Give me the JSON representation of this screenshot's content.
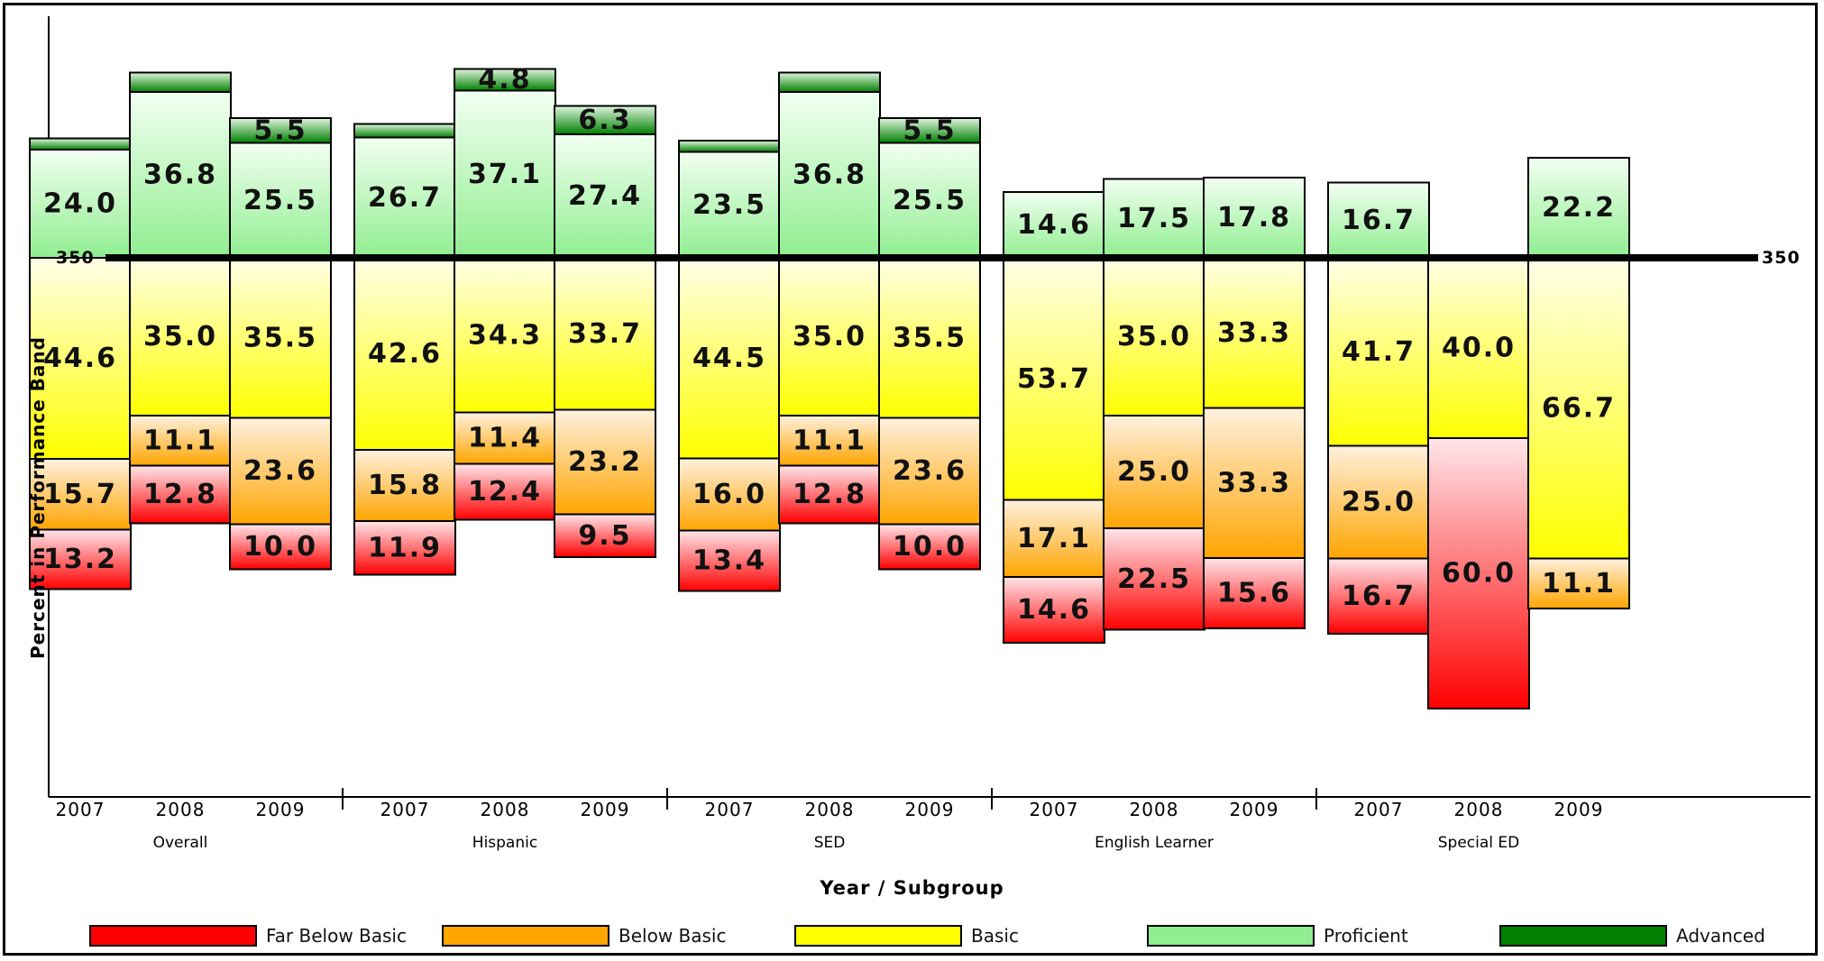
{
  "chart_data": {
    "type": "bar",
    "subtype": "diverging-stacked",
    "ylabel": "Percent in Performance Band",
    "xlabel": "Year / Subgroup",
    "reference_line": {
      "label": "350"
    },
    "groups": [
      "Overall",
      "Hispanic",
      "SED",
      "English Learner",
      "Special ED"
    ],
    "years": [
      "2007",
      "2008",
      "2009"
    ],
    "band_order_bottom_to_top": [
      "Far Below Basic",
      "Below Basic",
      "Basic",
      "Proficient",
      "Advanced"
    ],
    "legend": [
      {
        "name": "Far Below Basic",
        "color": "#ff0000"
      },
      {
        "name": "Below Basic",
        "color": "#ffa500"
      },
      {
        "name": "Basic",
        "color": "#ffff00"
      },
      {
        "name": "Proficient",
        "color": "#90ee90"
      },
      {
        "name": "Advanced",
        "color": "#008000"
      }
    ],
    "bars": [
      {
        "group": "Overall",
        "year": "2007",
        "values": {
          "Far Below Basic": 13.2,
          "Below Basic": 15.7,
          "Basic": 44.6,
          "Proficient": 24.0,
          "Advanced": 2.5
        },
        "labels": {
          "Far Below Basic": "13.2",
          "Below Basic": "15.7",
          "Basic": "44.6",
          "Proficient": "24.0"
        }
      },
      {
        "group": "Overall",
        "year": "2008",
        "values": {
          "Far Below Basic": 12.8,
          "Below Basic": 11.1,
          "Basic": 35.0,
          "Proficient": 36.8,
          "Advanced": 4.3
        },
        "labels": {
          "Far Below Basic": "12.8",
          "Below Basic": "11.1",
          "Basic": "35.0",
          "Proficient": "36.8"
        }
      },
      {
        "group": "Overall",
        "year": "2009",
        "values": {
          "Far Below Basic": 10.0,
          "Below Basic": 23.6,
          "Basic": 35.5,
          "Proficient": 25.5,
          "Advanced": 5.5
        },
        "labels": {
          "Far Below Basic": "10.0",
          "Below Basic": "23.6",
          "Basic": "35.5",
          "Proficient": "25.5",
          "Advanced": "5.5"
        }
      },
      {
        "group": "Hispanic",
        "year": "2007",
        "values": {
          "Far Below Basic": 11.9,
          "Below Basic": 15.8,
          "Basic": 42.6,
          "Proficient": 26.7,
          "Advanced": 3.0
        },
        "labels": {
          "Far Below Basic": "11.9",
          "Below Basic": "15.8",
          "Basic": "42.6",
          "Proficient": "26.7"
        }
      },
      {
        "group": "Hispanic",
        "year": "2008",
        "values": {
          "Far Below Basic": 12.4,
          "Below Basic": 11.4,
          "Basic": 34.3,
          "Proficient": 37.1,
          "Advanced": 4.8
        },
        "labels": {
          "Far Below Basic": "12.4",
          "Below Basic": "11.4",
          "Basic": "34.3",
          "Proficient": "37.1",
          "Advanced": "4.8"
        }
      },
      {
        "group": "Hispanic",
        "year": "2009",
        "values": {
          "Far Below Basic": 9.5,
          "Below Basic": 23.2,
          "Basic": 33.7,
          "Proficient": 27.4,
          "Advanced": 6.3
        },
        "labels": {
          "Far Below Basic": "9.5",
          "Below Basic": "23.2",
          "Basic": "33.7",
          "Proficient": "27.4",
          "Advanced": "6.3"
        }
      },
      {
        "group": "SED",
        "year": "2007",
        "values": {
          "Far Below Basic": 13.4,
          "Below Basic": 16.0,
          "Basic": 44.5,
          "Proficient": 23.5,
          "Advanced": 2.5
        },
        "labels": {
          "Far Below Basic": "13.4",
          "Below Basic": "16.0",
          "Basic": "44.5",
          "Proficient": "23.5"
        }
      },
      {
        "group": "SED",
        "year": "2008",
        "values": {
          "Far Below Basic": 12.8,
          "Below Basic": 11.1,
          "Basic": 35.0,
          "Proficient": 36.8,
          "Advanced": 4.3
        },
        "labels": {
          "Far Below Basic": "12.8",
          "Below Basic": "11.1",
          "Basic": "35.0",
          "Proficient": "36.8"
        }
      },
      {
        "group": "SED",
        "year": "2009",
        "values": {
          "Far Below Basic": 10.0,
          "Below Basic": 23.6,
          "Basic": 35.5,
          "Proficient": 25.5,
          "Advanced": 5.5
        },
        "labels": {
          "Far Below Basic": "10.0",
          "Below Basic": "23.6",
          "Basic": "35.5",
          "Proficient": "25.5",
          "Advanced": "5.5"
        }
      },
      {
        "group": "English Learner",
        "year": "2007",
        "values": {
          "Far Below Basic": 14.6,
          "Below Basic": 17.1,
          "Basic": 53.7,
          "Proficient": 14.6,
          "Advanced": 0
        },
        "labels": {
          "Far Below Basic": "14.6",
          "Below Basic": "17.1",
          "Basic": "53.7",
          "Proficient": "14.6"
        }
      },
      {
        "group": "English Learner",
        "year": "2008",
        "values": {
          "Far Below Basic": 22.5,
          "Below Basic": 25.0,
          "Basic": 35.0,
          "Proficient": 17.5,
          "Advanced": 0
        },
        "labels": {
          "Far Below Basic": "22.5",
          "Below Basic": "25.0",
          "Basic": "35.0",
          "Proficient": "17.5"
        }
      },
      {
        "group": "English Learner",
        "year": "2009",
        "values": {
          "Far Below Basic": 15.6,
          "Below Basic": 33.3,
          "Basic": 33.3,
          "Proficient": 17.8,
          "Advanced": 0
        },
        "labels": {
          "Far Below Basic": "15.6",
          "Below Basic": "33.3",
          "Basic": "33.3",
          "Proficient": "17.8"
        }
      },
      {
        "group": "Special ED",
        "year": "2007",
        "values": {
          "Far Below Basic": 16.7,
          "Below Basic": 25.0,
          "Basic": 41.7,
          "Proficient": 16.7,
          "Advanced": 0
        },
        "labels": {
          "Far Below Basic": "16.7",
          "Below Basic": "25.0",
          "Basic": "41.7",
          "Proficient": "16.7"
        }
      },
      {
        "group": "Special ED",
        "year": "2008",
        "values": {
          "Far Below Basic": 60.0,
          "Below Basic": 0,
          "Basic": 40.0,
          "Proficient": 0,
          "Advanced": 0
        },
        "labels": {
          "Far Below Basic": "60.0",
          "Basic": "40.0"
        }
      },
      {
        "group": "Special ED",
        "year": "2009",
        "values": {
          "Far Below Basic": 0,
          "Below Basic": 11.1,
          "Basic": 66.7,
          "Proficient": 22.2,
          "Advanced": 0
        },
        "labels": {
          "Below Basic": "11.1",
          "Basic": "66.7",
          "Proficient": "22.2"
        }
      }
    ],
    "grid": false,
    "legend_placement": "bottom"
  }
}
